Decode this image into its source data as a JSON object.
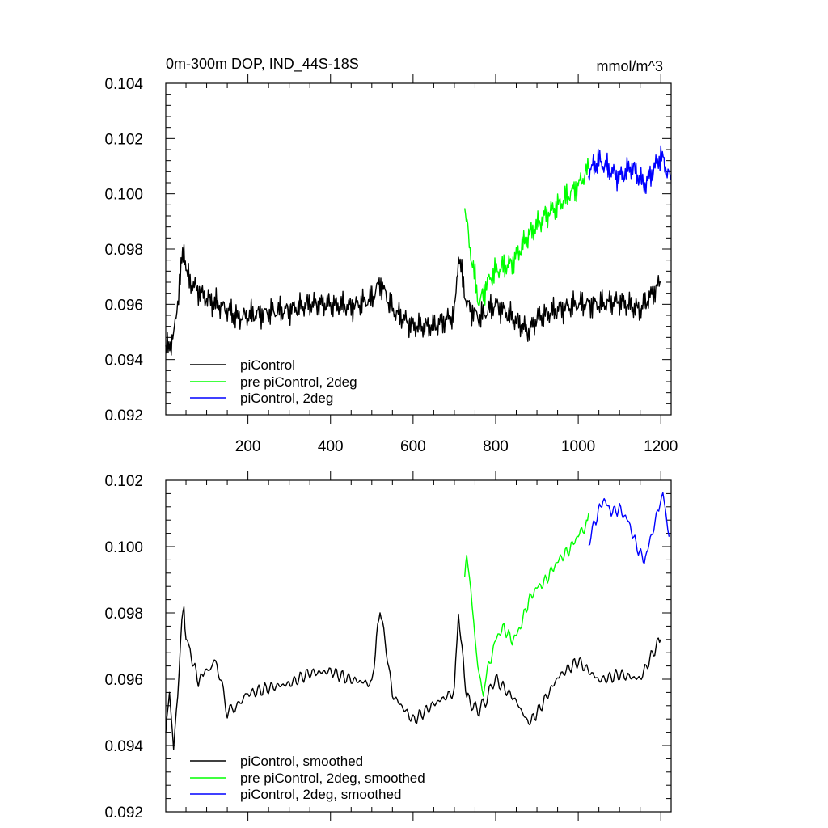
{
  "chart_data": [
    {
      "type": "line",
      "title": "0m-300m DOP, IND_44S-18S",
      "units": "mmol/m^3",
      "xlim": [
        1,
        1225
      ],
      "ylim": [
        0.092,
        0.104
      ],
      "xticks": [
        200,
        400,
        600,
        800,
        1000,
        1200
      ],
      "xtick_labels": [
        "200",
        "400",
        "600",
        "800",
        "1000",
        "1200"
      ],
      "yticks": [
        0.092,
        0.094,
        0.096,
        0.098,
        0.1,
        0.102,
        0.104
      ],
      "ytick_labels": [
        "0.092",
        "0.094",
        "0.096",
        "0.098",
        "0.100",
        "0.102",
        "0.104"
      ],
      "legend_position": "bottom-left",
      "series": [
        {
          "name": "piControl",
          "color": "#000000",
          "x": [
            1,
            20,
            40,
            45,
            50,
            60,
            80,
            100,
            125,
            150,
            175,
            200,
            250,
            300,
            350,
            400,
            450,
            500,
            520,
            550,
            600,
            650,
            700,
            710,
            730,
            760,
            800,
            850,
            880,
            900,
            950,
            1000,
            1050,
            1100,
            1150,
            1200
          ],
          "y": [
            0.0943,
            0.0948,
            0.0975,
            0.0982,
            0.0972,
            0.0968,
            0.0965,
            0.0962,
            0.096,
            0.0958,
            0.0955,
            0.0956,
            0.0957,
            0.0958,
            0.096,
            0.096,
            0.0959,
            0.0962,
            0.0968,
            0.0958,
            0.0952,
            0.0952,
            0.0956,
            0.0978,
            0.096,
            0.0955,
            0.096,
            0.0954,
            0.095,
            0.0955,
            0.0958,
            0.096,
            0.096,
            0.0961,
            0.0958,
            0.0968
          ]
        },
        {
          "name": "pre piControl, 2deg",
          "color": "#00ff00",
          "x": [
            725,
            740,
            760,
            780,
            800,
            840,
            880,
            920,
            960,
            1000,
            1025
          ],
          "y": [
            0.0995,
            0.0978,
            0.096,
            0.0968,
            0.0972,
            0.0975,
            0.0985,
            0.0992,
            0.0997,
            0.1003,
            0.1009
          ]
        },
        {
          "name": "piControl, 2deg",
          "color": "#0000ff",
          "x": [
            1025,
            1050,
            1080,
            1100,
            1130,
            1160,
            1180,
            1200,
            1225
          ],
          "y": [
            0.1008,
            0.1012,
            0.1008,
            0.1006,
            0.101,
            0.1003,
            0.1008,
            0.1014,
            0.1005
          ]
        }
      ]
    },
    {
      "type": "line",
      "title": "",
      "xlim": [
        1,
        1225
      ],
      "ylim": [
        0.092,
        0.102
      ],
      "xticks": [
        200,
        400,
        600,
        800,
        1000,
        1200
      ],
      "yticks": [
        0.092,
        0.094,
        0.096,
        0.098,
        0.1,
        0.102
      ],
      "ytick_labels": [
        "0.092",
        "0.094",
        "0.096",
        "0.098",
        "0.100",
        "0.102"
      ],
      "legend_position": "bottom-left",
      "series": [
        {
          "name": "piControl, smoothed",
          "color": "#000000",
          "x": [
            1,
            10,
            20,
            30,
            40,
            45,
            50,
            60,
            80,
            100,
            125,
            150,
            175,
            200,
            250,
            300,
            350,
            400,
            450,
            500,
            520,
            550,
            600,
            650,
            700,
            710,
            730,
            760,
            800,
            850,
            880,
            900,
            950,
            1000,
            1050,
            1100,
            1150,
            1200
          ],
          "y": [
            0.0943,
            0.0958,
            0.0938,
            0.0955,
            0.0978,
            0.0982,
            0.0972,
            0.0968,
            0.096,
            0.0963,
            0.0965,
            0.095,
            0.0952,
            0.0956,
            0.0957,
            0.0958,
            0.0962,
            0.0963,
            0.096,
            0.0958,
            0.0982,
            0.0955,
            0.0948,
            0.0953,
            0.0956,
            0.098,
            0.0955,
            0.095,
            0.096,
            0.0954,
            0.0946,
            0.095,
            0.096,
            0.0965,
            0.096,
            0.0962,
            0.096,
            0.0972
          ]
        },
        {
          "name": "pre piControl, 2deg, smoothed",
          "color": "#00ff00",
          "x": [
            725,
            730,
            740,
            750,
            760,
            770,
            780,
            800,
            820,
            840,
            860,
            880,
            900,
            920,
            940,
            960,
            980,
            1000,
            1020,
            1025
          ],
          "y": [
            0.0991,
            0.0998,
            0.0988,
            0.097,
            0.0962,
            0.0956,
            0.0963,
            0.0972,
            0.0975,
            0.0972,
            0.0976,
            0.0983,
            0.0988,
            0.099,
            0.0993,
            0.0997,
            0.1,
            0.1003,
            0.1006,
            0.101
          ]
        },
        {
          "name": "piControl, 2deg, smoothed",
          "color": "#0000ff",
          "x": [
            1025,
            1040,
            1060,
            1080,
            1100,
            1120,
            1140,
            1160,
            1180,
            1195,
            1205,
            1220
          ],
          "y": [
            0.1001,
            0.1008,
            0.1014,
            0.101,
            0.1012,
            0.1008,
            0.1,
            0.0996,
            0.1005,
            0.1012,
            0.1017,
            0.1003
          ]
        }
      ]
    }
  ]
}
